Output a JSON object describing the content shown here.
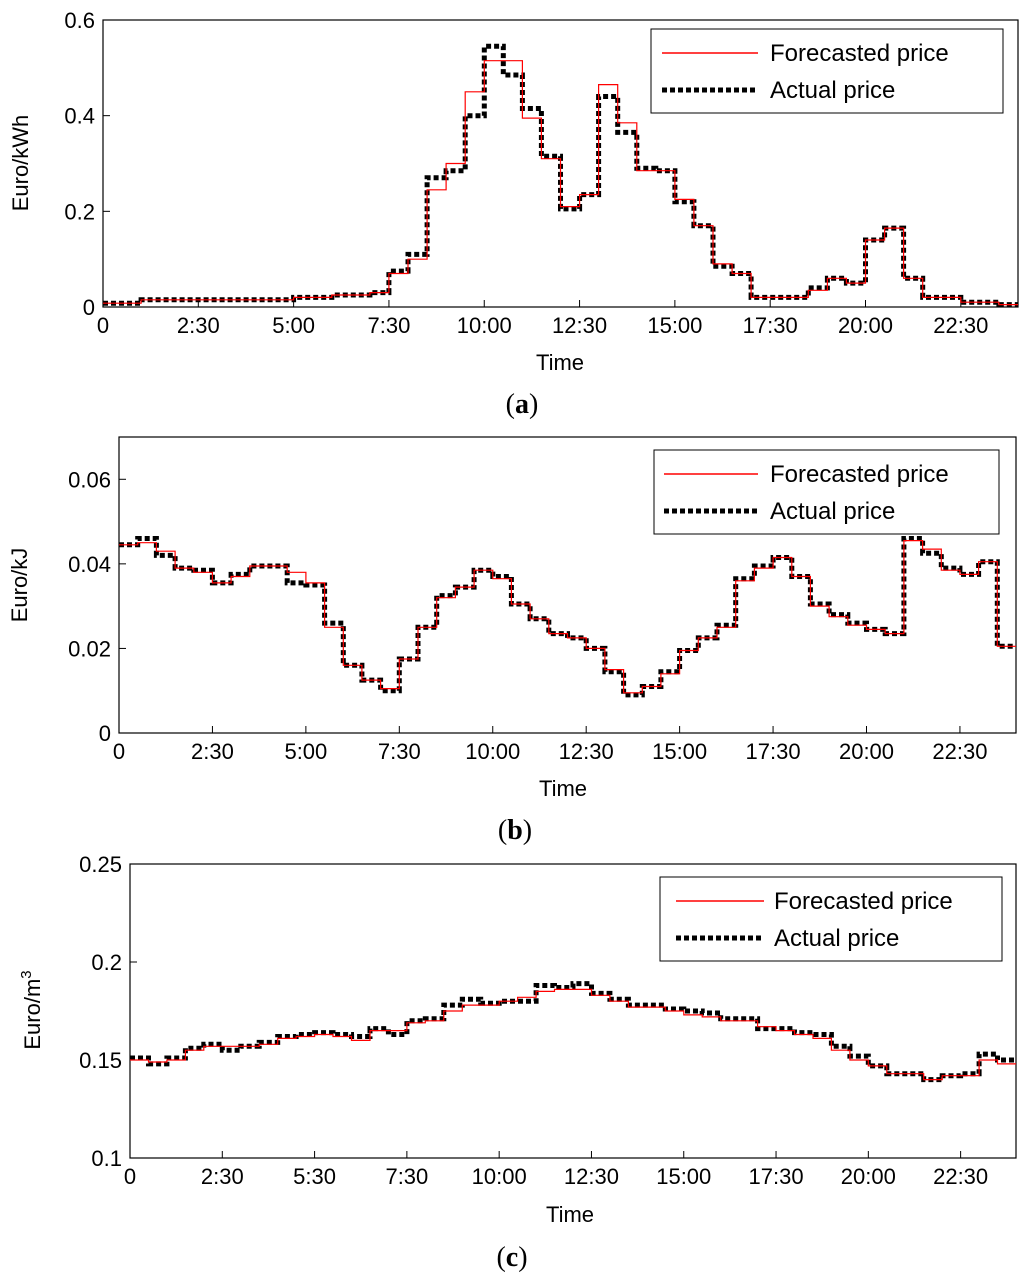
{
  "figure": {
    "captions": [
      "a",
      "b",
      "c"
    ]
  },
  "chart_data": [
    {
      "type": "line",
      "caption": "a",
      "xlabel": "Time",
      "ylabel": "Euro/kWh",
      "ylim": [
        0,
        0.6
      ],
      "yticks": [
        "0",
        "0.2",
        "0.4",
        "0.6"
      ],
      "xticks": [
        "0",
        "2:30",
        "5:00",
        "7:30",
        "10:00",
        "12:30",
        "15:00",
        "17:30",
        "20:00",
        "22:30"
      ],
      "xlim": [
        0,
        24
      ],
      "legend_position": "top-right",
      "series": [
        {
          "name": "Forecasted price",
          "style": "red-solid-step",
          "values": [
            0.008,
            0.008,
            0.015,
            0.015,
            0.015,
            0.015,
            0.015,
            0.015,
            0.015,
            0.015,
            0.02,
            0.02,
            0.025,
            0.025,
            0.03,
            0.07,
            0.1,
            0.245,
            0.3,
            0.45,
            0.515,
            0.515,
            0.395,
            0.31,
            0.21,
            0.235,
            0.465,
            0.385,
            0.285,
            0.285,
            0.225,
            0.17,
            0.09,
            0.07,
            0.02,
            0.02,
            0.02,
            0.035,
            0.06,
            0.05,
            0.14,
            0.165,
            0.06,
            0.02,
            0.02,
            0.01,
            0.01,
            0.005
          ]
        },
        {
          "name": "Actual price",
          "style": "black-dotted-step",
          "values": [
            0.008,
            0.008,
            0.015,
            0.015,
            0.015,
            0.015,
            0.015,
            0.015,
            0.015,
            0.015,
            0.02,
            0.02,
            0.025,
            0.025,
            0.03,
            0.075,
            0.11,
            0.27,
            0.285,
            0.4,
            0.545,
            0.485,
            0.415,
            0.315,
            0.205,
            0.235,
            0.44,
            0.365,
            0.29,
            0.285,
            0.22,
            0.17,
            0.085,
            0.07,
            0.02,
            0.02,
            0.02,
            0.04,
            0.06,
            0.05,
            0.14,
            0.165,
            0.06,
            0.02,
            0.02,
            0.01,
            0.01,
            0.005
          ]
        }
      ]
    },
    {
      "type": "line",
      "caption": "b",
      "xlabel": "Time",
      "ylabel": "Euro/kJ",
      "ylim": [
        0,
        0.07
      ],
      "yticks": [
        "0",
        "0.02",
        "0.04",
        "0.06"
      ],
      "xticks": [
        "0",
        "2:30",
        "5:00",
        "7:30",
        "10:00",
        "12:30",
        "15:00",
        "17:30",
        "20:00",
        "22:30"
      ],
      "xlim": [
        0,
        24
      ],
      "legend_position": "top-right",
      "series": [
        {
          "name": "Forecasted price",
          "style": "red-solid-step",
          "values": [
            0.0445,
            0.045,
            0.043,
            0.039,
            0.038,
            0.0355,
            0.037,
            0.0395,
            0.0395,
            0.038,
            0.0355,
            0.025,
            0.016,
            0.0125,
            0.0105,
            0.0175,
            0.025,
            0.032,
            0.0345,
            0.0385,
            0.0365,
            0.0305,
            0.027,
            0.0235,
            0.0225,
            0.02,
            0.015,
            0.0095,
            0.011,
            0.014,
            0.0195,
            0.0225,
            0.025,
            0.036,
            0.039,
            0.0415,
            0.037,
            0.03,
            0.0275,
            0.0255,
            0.0245,
            0.0235,
            0.0455,
            0.0435,
            0.0385,
            0.0375,
            0.0405,
            0.0205
          ]
        },
        {
          "name": "Actual price",
          "style": "black-dotted-step",
          "values": [
            0.0445,
            0.046,
            0.042,
            0.039,
            0.0385,
            0.0355,
            0.0375,
            0.0395,
            0.0395,
            0.0355,
            0.035,
            0.026,
            0.016,
            0.0125,
            0.01,
            0.0175,
            0.025,
            0.0325,
            0.0345,
            0.0385,
            0.037,
            0.0305,
            0.027,
            0.0235,
            0.0225,
            0.02,
            0.0145,
            0.009,
            0.011,
            0.0145,
            0.0195,
            0.0225,
            0.0255,
            0.0365,
            0.0395,
            0.0415,
            0.037,
            0.0305,
            0.028,
            0.026,
            0.0245,
            0.0235,
            0.046,
            0.0425,
            0.039,
            0.0375,
            0.0405,
            0.0205
          ]
        }
      ]
    },
    {
      "type": "line",
      "caption": "c",
      "xlabel": "Time",
      "ylabel": "Euro/m",
      "ylabel_sup": "3",
      "ylim": [
        0.1,
        0.25
      ],
      "yticks": [
        "0.1",
        "0.15",
        "0.2",
        "0.25"
      ],
      "xticks": [
        "0",
        "2:30",
        "5:30",
        "7:30",
        "10:00",
        "12:30",
        "15:00",
        "17:30",
        "20:00",
        "22:30"
      ],
      "xlim": [
        0,
        24
      ],
      "legend_position": "top-right",
      "series": [
        {
          "name": "Forecasted price",
          "style": "red-solid-step",
          "values": [
            0.15,
            0.149,
            0.15,
            0.155,
            0.157,
            0.157,
            0.157,
            0.158,
            0.161,
            0.162,
            0.163,
            0.162,
            0.16,
            0.165,
            0.165,
            0.169,
            0.17,
            0.175,
            0.178,
            0.178,
            0.18,
            0.182,
            0.185,
            0.186,
            0.186,
            0.183,
            0.18,
            0.177,
            0.177,
            0.175,
            0.173,
            0.172,
            0.17,
            0.17,
            0.167,
            0.165,
            0.163,
            0.161,
            0.155,
            0.15,
            0.147,
            0.143,
            0.143,
            0.14,
            0.142,
            0.142,
            0.15,
            0.148
          ]
        },
        {
          "name": "Actual price",
          "style": "black-dotted-step",
          "values": [
            0.151,
            0.148,
            0.151,
            0.156,
            0.158,
            0.155,
            0.157,
            0.159,
            0.162,
            0.163,
            0.164,
            0.163,
            0.162,
            0.166,
            0.163,
            0.17,
            0.171,
            0.178,
            0.181,
            0.179,
            0.18,
            0.18,
            0.188,
            0.187,
            0.189,
            0.184,
            0.181,
            0.178,
            0.178,
            0.176,
            0.175,
            0.174,
            0.171,
            0.171,
            0.166,
            0.166,
            0.164,
            0.163,
            0.157,
            0.152,
            0.147,
            0.143,
            0.143,
            0.14,
            0.142,
            0.143,
            0.153,
            0.15
          ]
        }
      ]
    }
  ]
}
